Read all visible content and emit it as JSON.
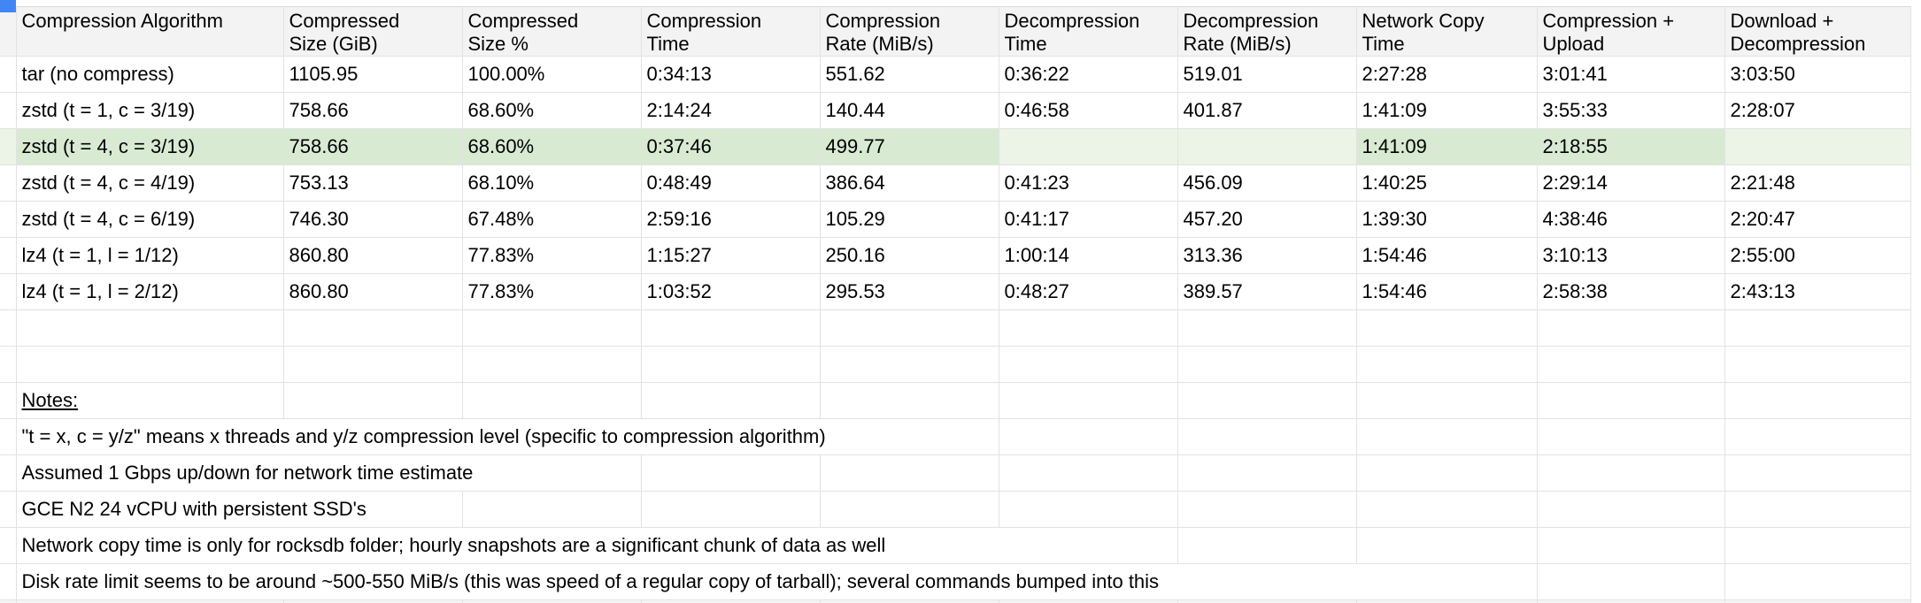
{
  "sheet": {
    "corner_color": "#4285f4",
    "header_bg": "#f3f3f3",
    "grid_line_color": "#e2e2e2",
    "highlight_color": "#d9ead3",
    "highlight_empty_color": "#ebf4e7",
    "text_color": "#000000"
  },
  "table": {
    "columns": [
      "Compression Algorithm",
      "Compressed\nSize (GiB)",
      "Compressed\nSize %",
      "Compression\nTime",
      "Compression\nRate (MiB/s)",
      "Decompression\nTime",
      "Decompression\nRate (MiB/s)",
      "Network Copy\nTime",
      "Compression +\nUpload",
      "Download +\nDecompression"
    ],
    "rows": [
      {
        "highlight": false,
        "cells": [
          "tar (no compress)",
          "1105.95",
          "100.00%",
          "0:34:13",
          "551.62",
          "0:36:22",
          "519.01",
          "2:27:28",
          "3:01:41",
          "3:03:50"
        ]
      },
      {
        "highlight": false,
        "cells": [
          "zstd (t = 1, c = 3/19)",
          "758.66",
          "68.60%",
          "2:14:24",
          "140.44",
          "0:46:58",
          "401.87",
          "1:41:09",
          "3:55:33",
          "2:28:07"
        ]
      },
      {
        "highlight": true,
        "cells": [
          "zstd (t = 4, c = 3/19)",
          "758.66",
          "68.60%",
          "0:37:46",
          "499.77",
          "",
          "",
          "1:41:09",
          "2:18:55",
          ""
        ]
      },
      {
        "highlight": false,
        "cells": [
          "zstd (t = 4, c = 4/19)",
          "753.13",
          "68.10%",
          "0:48:49",
          "386.64",
          "0:41:23",
          "456.09",
          "1:40:25",
          "2:29:14",
          "2:21:48"
        ]
      },
      {
        "highlight": false,
        "cells": [
          "zstd (t = 4, c = 6/19)",
          "746.30",
          "67.48%",
          "2:59:16",
          "105.29",
          "0:41:17",
          "457.20",
          "1:39:30",
          "4:38:46",
          "2:20:47"
        ]
      },
      {
        "highlight": false,
        "cells": [
          "lz4 (t = 1, l = 1/12)",
          "860.80",
          "77.83%",
          "1:15:27",
          "250.16",
          "1:00:14",
          "313.36",
          "1:54:46",
          "3:10:13",
          "2:55:00"
        ]
      },
      {
        "highlight": false,
        "cells": [
          "lz4 (t = 1, l = 2/12)",
          "860.80",
          "77.83%",
          "1:03:52",
          "295.53",
          "0:48:27",
          "389.57",
          "1:54:46",
          "2:58:38",
          "2:43:13"
        ]
      }
    ]
  },
  "notes": {
    "title": "Notes:",
    "items": [
      "\"t = x, c = y/z\" means x threads and y/z compression level (specific to compression algorithm)",
      "Assumed 1 Gbps up/down for network time estimate",
      "GCE N2 24 vCPU with persistent SSD's",
      "Network copy time is only for rocksdb folder; hourly snapshots are a significant chunk of data as well",
      "Disk rate limit seems to be around ~500-550 MiB/s (this was speed of a regular copy of tarball); several commands bumped into this"
    ]
  }
}
